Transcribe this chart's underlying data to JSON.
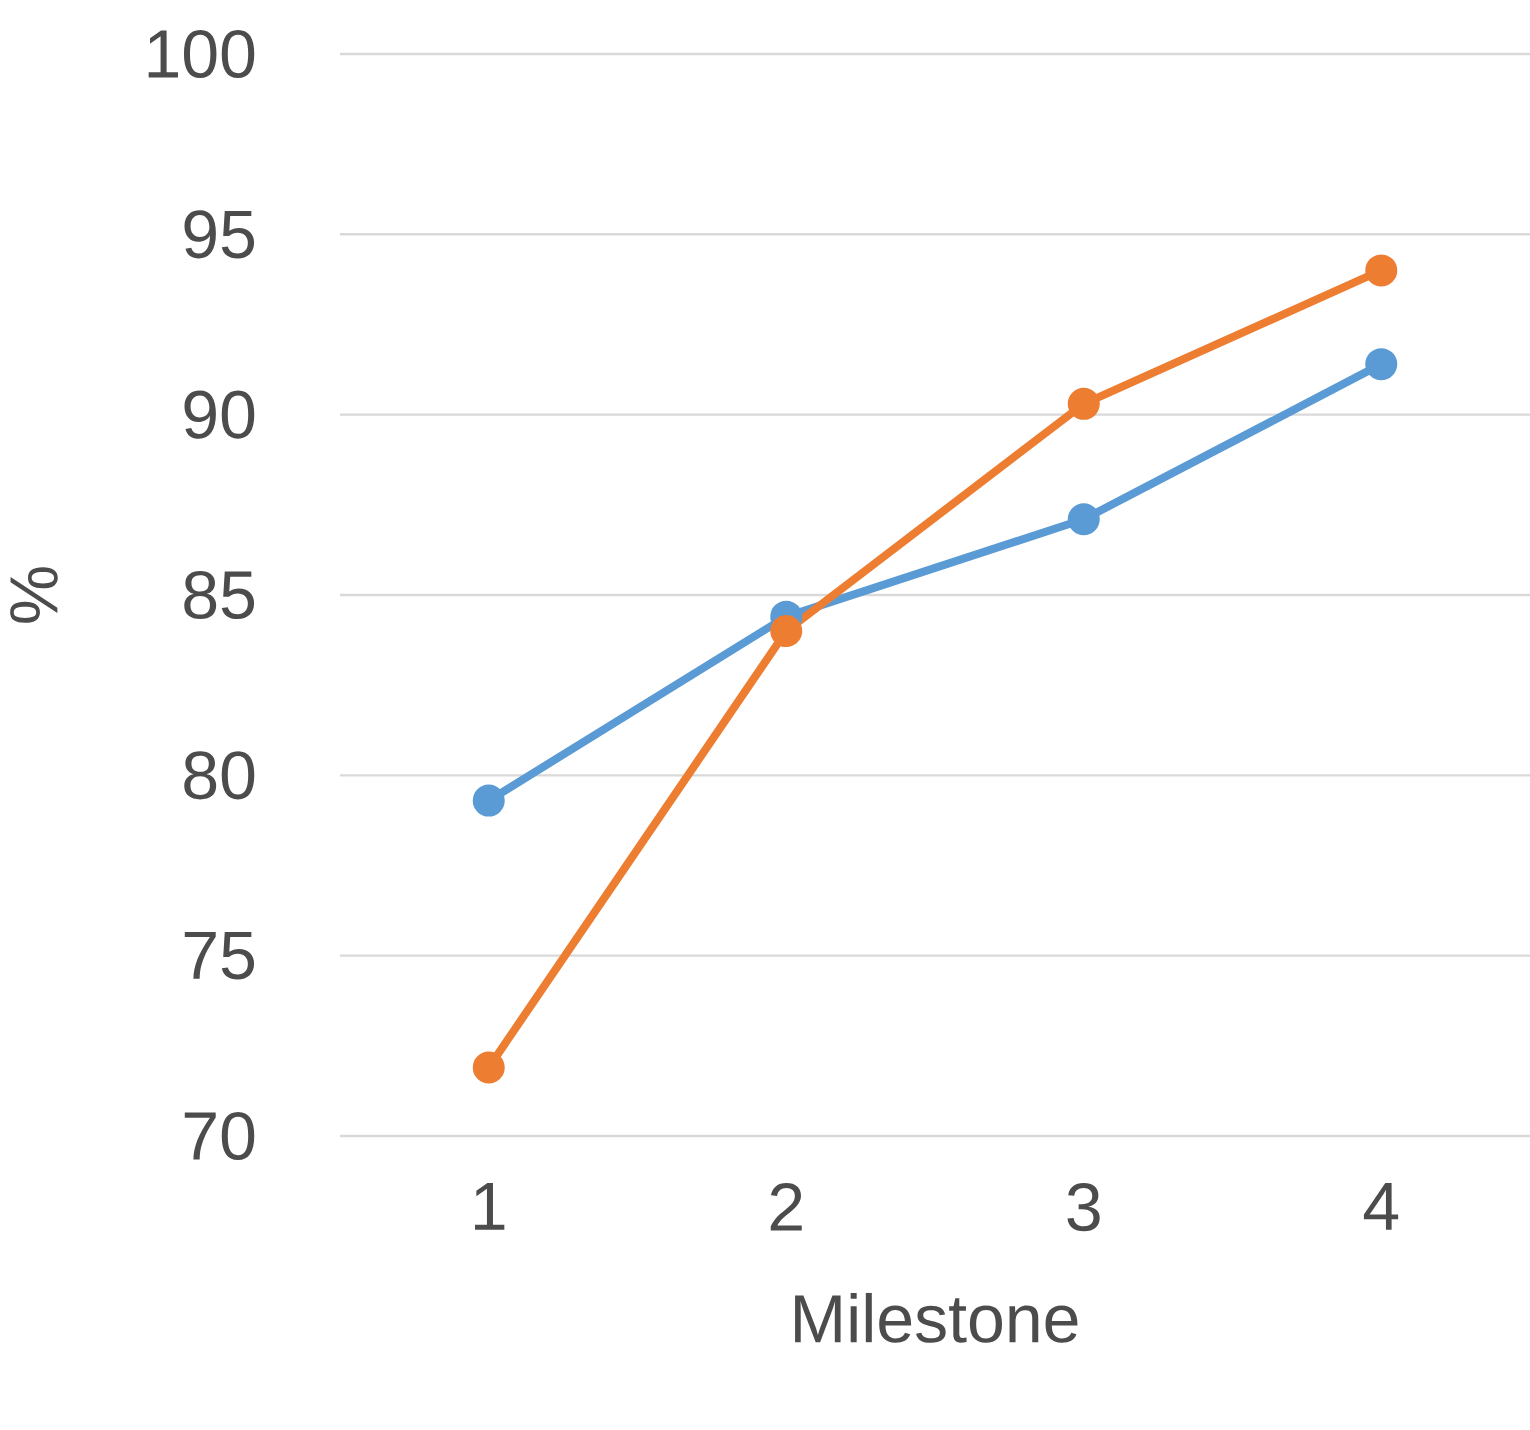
{
  "chart_data": {
    "type": "line",
    "xlabel": "Milestone",
    "ylabel": "%",
    "categories": [
      "1",
      "2",
      "3",
      "4"
    ],
    "series": [
      {
        "color": "#5b9bd5",
        "values": [
          79.3,
          84.4,
          87.1,
          91.4
        ]
      },
      {
        "color": "#ed7d31",
        "values": [
          71.9,
          84.0,
          90.3,
          94.0
        ]
      }
    ],
    "ylim": [
      70,
      100
    ],
    "yticks": [
      70,
      75,
      80,
      85,
      90,
      95,
      100
    ],
    "grid": "y",
    "marker": "circle",
    "line_style": "solid"
  }
}
